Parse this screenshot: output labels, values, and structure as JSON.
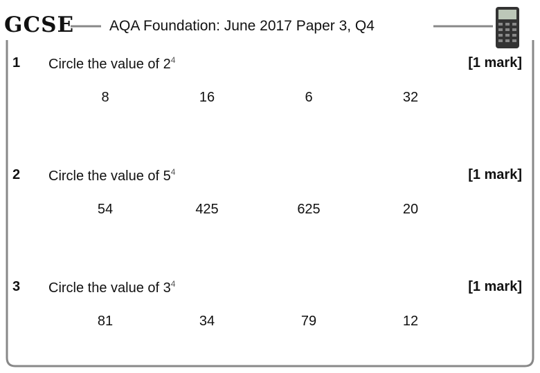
{
  "header": {
    "logo": "GCSE",
    "title": "AQA Foundation: June 2017 Paper 3, Q4"
  },
  "questions": [
    {
      "number": "1",
      "text": "Circle the value of 2",
      "exponent": "4",
      "marks": "[1 mark]",
      "options": [
        "8",
        "16",
        "6",
        "32"
      ]
    },
    {
      "number": "2",
      "text": "Circle the value of 5",
      "exponent": "4",
      "marks": "[1 mark]",
      "options": [
        "54",
        "425",
        "625",
        "20"
      ]
    },
    {
      "number": "3",
      "text": "Circle the value of 3",
      "exponent": "4",
      "marks": "[1 mark]",
      "options": [
        "81",
        "34",
        "79",
        "12"
      ]
    }
  ]
}
